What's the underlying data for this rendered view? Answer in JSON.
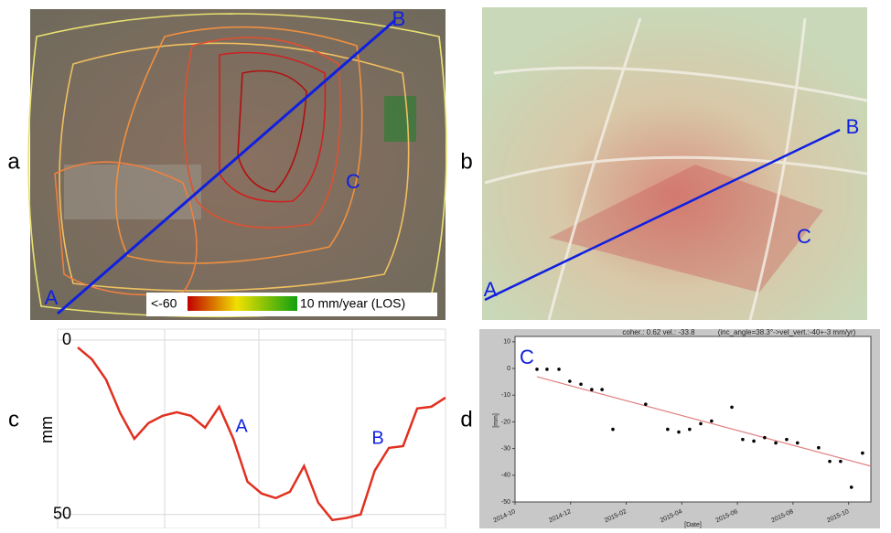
{
  "panel_labels": [
    "a",
    "b",
    "c",
    "d"
  ],
  "map_a": {
    "points": [
      "A",
      "B",
      "C"
    ],
    "colorbar_min": "<-60",
    "colorbar_max": "10 mm/year (LOS)"
  },
  "map_b": {
    "points": [
      "A",
      "B",
      "C"
    ]
  },
  "chart_data": [
    {
      "type": "line",
      "y_label": "mm",
      "ylim": [
        0,
        54
      ],
      "yticks": [
        0,
        50
      ],
      "y_inverted": true,
      "grid": true,
      "color": "#e03020",
      "values": [
        2.1,
        5.5,
        11.3,
        20.9,
        28.3,
        23.8,
        21.7,
        20.7,
        21.7,
        25.1,
        19.1,
        28.3,
        40.6,
        44,
        45.3,
        43.5,
        36.1,
        46.6,
        51.6,
        51,
        50,
        37.4,
        30.9,
        30.4,
        19.6,
        19.1,
        16.5
      ],
      "annotations": [
        "A",
        "B"
      ]
    },
    {
      "type": "scatter",
      "title": "coher.: 0.62 vel.: -33.8",
      "subtitle": "(inc_angle=38.3°->vel_vert.:-40+-3 mm/yr)",
      "annotation": "C",
      "x_label": "[Date]",
      "y_label": "[mm]",
      "xlim": [
        0,
        12.8
      ],
      "ylim": [
        -50,
        12
      ],
      "xticks": [
        {
          "value": 0,
          "label": "2014-10"
        },
        {
          "value": 2,
          "label": "2014-12"
        },
        {
          "value": 4,
          "label": "2015-02"
        },
        {
          "value": 6,
          "label": "2015-04"
        },
        {
          "value": 8,
          "label": "2015-06"
        },
        {
          "value": 10,
          "label": "2015-08"
        },
        {
          "value": 12,
          "label": "2015-10"
        }
      ],
      "yticks": [
        10,
        0,
        -10,
        -20,
        -30,
        -40,
        -50
      ],
      "color": "#000000",
      "x": [
        0.79,
        1.15,
        1.58,
        1.97,
        2.37,
        2.76,
        3.13,
        3.52,
        4.7,
        5.49,
        5.89,
        6.28,
        6.68,
        7.07,
        7.8,
        8.19,
        8.59,
        8.98,
        9.38,
        9.77,
        10.16,
        10.92,
        11.32,
        11.71,
        12.1,
        12.5
      ],
      "values": [
        -0.3,
        -0.3,
        -0.3,
        -4.8,
        -5.9,
        -7.9,
        -7.9,
        -22.8,
        -13.4,
        -22.8,
        -23.8,
        -22.8,
        -20.7,
        -19.7,
        -14.5,
        -26.6,
        -27.2,
        -25.9,
        -27.9,
        -26.6,
        -27.9,
        -29.7,
        -34.8,
        -34.8,
        -44.5,
        -31.7
      ],
      "trend": {
        "x": [
          0.79,
          12.8
        ],
        "values": [
          -3.1,
          -36.6
        ],
        "color": "#e08080"
      }
    }
  ]
}
